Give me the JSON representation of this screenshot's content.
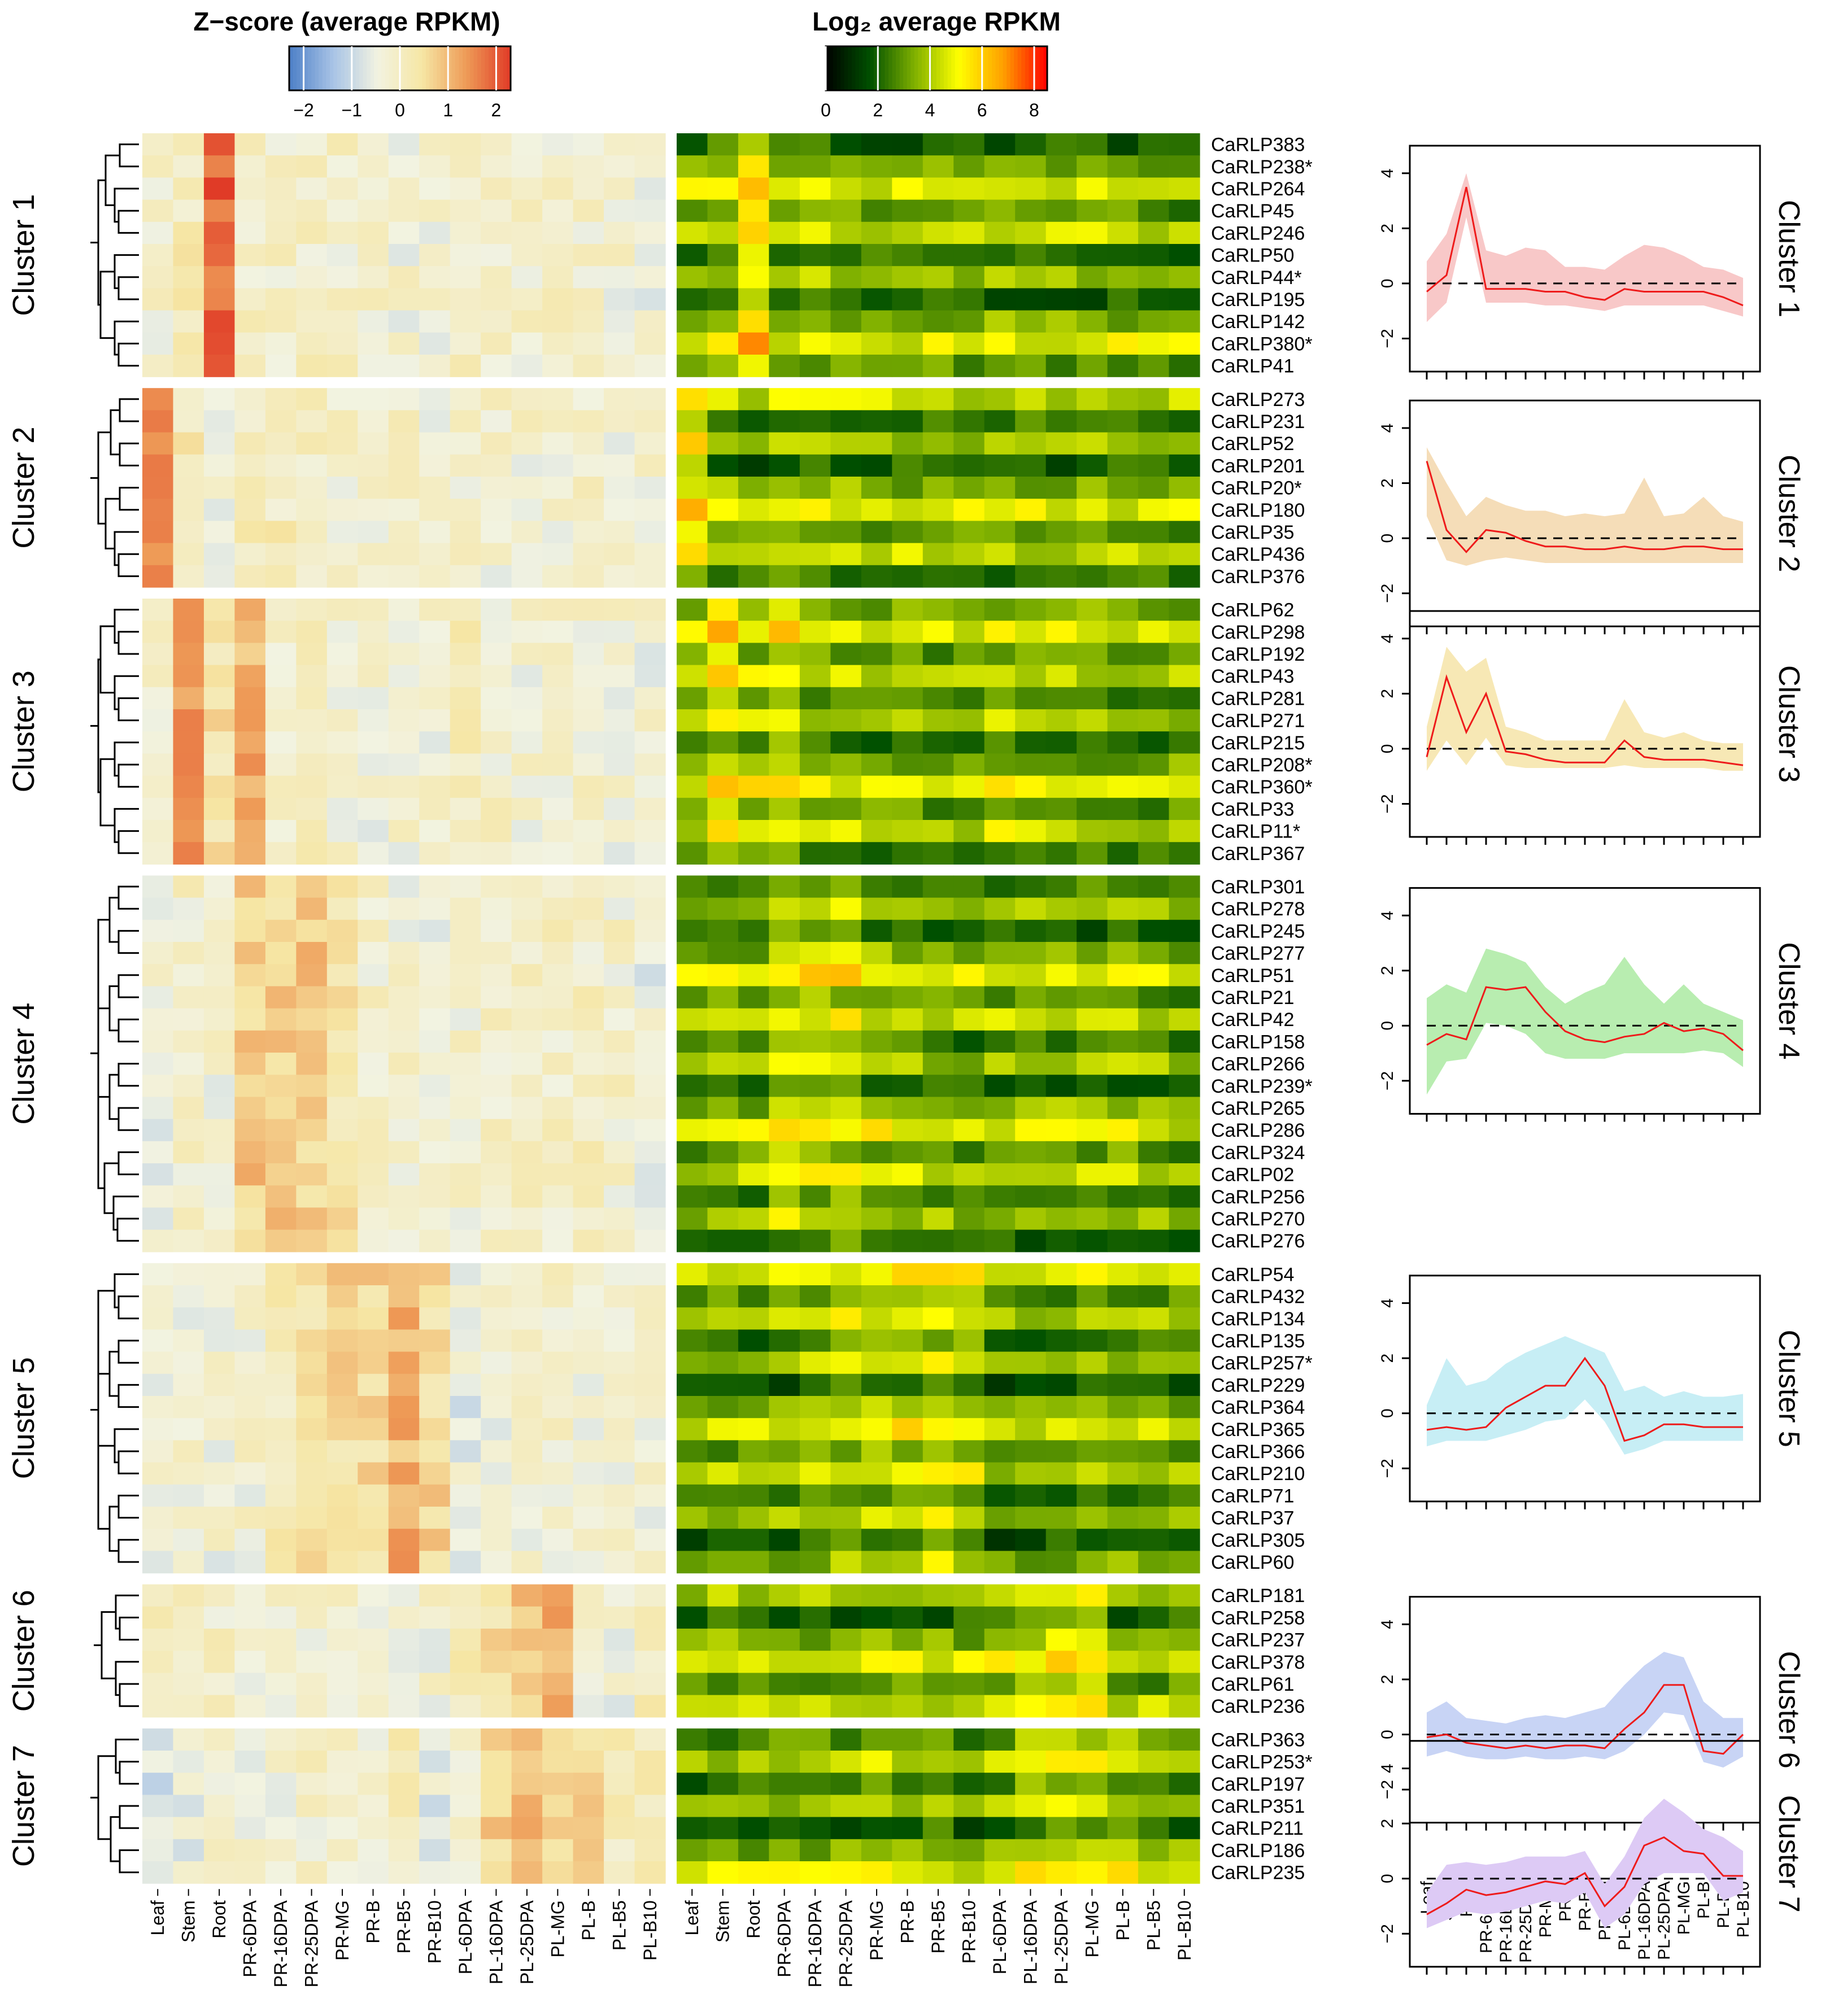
{
  "chart_data": {
    "type": "heatmap",
    "legend_zscore": {
      "title": "Z−score (average RPKM)",
      "ticks": [
        "−2",
        "−1",
        "0",
        "1",
        "2"
      ],
      "range": [
        -2.3,
        2.3
      ]
    },
    "legend_log2": {
      "title": "Log₂ average RPKM",
      "ticks": [
        "0",
        "2",
        "4",
        "6",
        "8"
      ],
      "range": [
        0,
        8.5
      ]
    },
    "heatmap_colors": {
      "zscore": [
        "#4c7fc7",
        "#a9c4e6",
        "#f2f3e1",
        "#f6e6a4",
        "#ee9b57",
        "#e03b27"
      ],
      "log2": [
        "#000000",
        "#005000",
        "#7fb000",
        "#ffff00",
        "#ffa000",
        "#ff0000"
      ]
    },
    "line_colors": {
      "mean": "#ee1b1b",
      "zero_line": "#000000"
    },
    "x_tick_labels": [
      "Leaf",
      "Stem",
      "Root",
      "PR-6DPA",
      "PR-16DPA",
      "PR-25DPA",
      "PR-MG",
      "PR-B",
      "PR-B5",
      "PR-B10",
      "PL-6DPA",
      "PL-16DPA",
      "PL-25DPA",
      "PL-MG",
      "PL-B",
      "PL-B5",
      "PL-B10"
    ],
    "profile_y_ticks": [
      "4",
      "2",
      "0",
      "−2"
    ],
    "profile_ylim": [
      -3.2,
      5
    ],
    "clusters": [
      {
        "name": "Cluster 1",
        "band_color": "#f8c8c8",
        "genes": [
          "CaRLP383",
          "CaRLP238*",
          "CaRLP264",
          "CaRLP45",
          "CaRLP246",
          "CaRLP50",
          "CaRLP44*",
          "CaRLP195",
          "CaRLP142",
          "CaRLP380*",
          "CaRLP41"
        ],
        "mean": [
          -0.3,
          0.3,
          3.5,
          -0.2,
          -0.2,
          -0.2,
          -0.3,
          -0.3,
          -0.5,
          -0.6,
          -0.2,
          -0.3,
          -0.3,
          -0.3,
          -0.3,
          -0.5,
          -0.8
        ],
        "lower": [
          -1.4,
          -0.7,
          2.4,
          -0.7,
          -0.7,
          -0.7,
          -0.8,
          -0.8,
          -0.9,
          -1.0,
          -0.8,
          -0.8,
          -0.8,
          -0.8,
          -0.8,
          -1.0,
          -1.2
        ],
        "upper": [
          0.8,
          1.8,
          4.0,
          1.2,
          1.0,
          1.3,
          1.2,
          0.6,
          0.6,
          0.5,
          1.0,
          1.4,
          1.3,
          1.0,
          0.6,
          0.5,
          0.2
        ]
      },
      {
        "name": "Cluster 2",
        "band_color": "#f5ddb8",
        "genes": [
          "CaRLP273",
          "CaRLP231",
          "CaRLP52",
          "CaRLP201",
          "CaRLP20*",
          "CaRLP180",
          "CaRLP35",
          "CaRLP436",
          "CaRLP376"
        ],
        "mean": [
          2.8,
          0.3,
          -0.5,
          0.3,
          0.2,
          -0.1,
          -0.3,
          -0.3,
          -0.4,
          -0.4,
          -0.3,
          -0.4,
          -0.4,
          -0.3,
          -0.3,
          -0.4,
          -0.4
        ],
        "lower": [
          0.8,
          -0.8,
          -1.0,
          -0.8,
          -0.7,
          -0.8,
          -0.9,
          -0.9,
          -0.9,
          -0.9,
          -0.9,
          -0.9,
          -0.9,
          -0.9,
          -0.9,
          -0.9,
          -0.9
        ],
        "upper": [
          3.3,
          2.0,
          0.8,
          1.5,
          1.2,
          1.0,
          1.0,
          0.8,
          0.9,
          0.8,
          0.9,
          2.2,
          0.8,
          0.9,
          1.5,
          0.8,
          0.6
        ]
      },
      {
        "name": "Cluster 3",
        "band_color": "#f7e8b5",
        "genes": [
          "CaRLP62",
          "CaRLP298",
          "CaRLP192",
          "CaRLP43",
          "CaRLP281",
          "CaRLP271",
          "CaRLP215",
          "CaRLP208*",
          "CaRLP360*",
          "CaRLP33",
          "CaRLP11*",
          "CaRLP367"
        ],
        "mean": [
          -0.3,
          2.6,
          0.6,
          2.0,
          -0.1,
          -0.2,
          -0.4,
          -0.5,
          -0.5,
          -0.5,
          0.3,
          -0.3,
          -0.4,
          -0.4,
          -0.4,
          -0.5,
          -0.6
        ],
        "lower": [
          -0.8,
          0.3,
          -0.6,
          0.4,
          -0.6,
          -0.7,
          -0.7,
          -0.7,
          -0.7,
          -0.7,
          -0.6,
          -0.7,
          -0.7,
          -0.7,
          -0.7,
          -0.8,
          -0.8
        ],
        "upper": [
          0.8,
          3.7,
          2.8,
          3.3,
          0.8,
          0.6,
          0.3,
          0.3,
          0.3,
          0.3,
          1.8,
          0.6,
          0.4,
          0.6,
          0.3,
          0.2,
          0.2
        ]
      },
      {
        "name": "Cluster 4",
        "band_color": "#b8edb0",
        "genes": [
          "CaRLP301",
          "CaRLP278",
          "CaRLP245",
          "CaRLP277",
          "CaRLP51",
          "CaRLP21",
          "CaRLP42",
          "CaRLP158",
          "CaRLP266",
          "CaRLP239*",
          "CaRLP265",
          "CaRLP286",
          "CaRLP324",
          "CaRLP02",
          "CaRLP256",
          "CaRLP270",
          "CaRLP276"
        ],
        "mean": [
          -0.7,
          -0.3,
          -0.5,
          1.4,
          1.3,
          1.4,
          0.5,
          -0.2,
          -0.5,
          -0.6,
          -0.4,
          -0.3,
          0.1,
          -0.2,
          -0.1,
          -0.3,
          -0.9
        ],
        "lower": [
          -2.5,
          -1.3,
          -1.2,
          0.1,
          0.0,
          -0.3,
          -1.0,
          -1.2,
          -1.2,
          -1.2,
          -1.0,
          -1.0,
          -1.0,
          -1.0,
          -0.9,
          -1.0,
          -1.5
        ],
        "upper": [
          1.0,
          1.5,
          1.2,
          2.8,
          2.6,
          2.3,
          1.4,
          0.8,
          1.2,
          1.5,
          2.5,
          1.5,
          0.8,
          1.5,
          0.8,
          0.5,
          0.2
        ]
      },
      {
        "name": "Cluster 5",
        "band_color": "#c7eef5",
        "genes": [
          "CaRLP54",
          "CaRLP432",
          "CaRLP134",
          "CaRLP135",
          "CaRLP257*",
          "CaRLP229",
          "CaRLP364",
          "CaRLP365",
          "CaRLP366",
          "CaRLP210",
          "CaRLP71",
          "CaRLP37",
          "CaRLP305",
          "CaRLP60"
        ],
        "mean": [
          -0.6,
          -0.5,
          -0.6,
          -0.5,
          0.2,
          0.6,
          1.0,
          1.0,
          2.0,
          1.0,
          -1.0,
          -0.8,
          -0.4,
          -0.4,
          -0.5,
          -0.5,
          -0.5
        ],
        "lower": [
          -1.2,
          -1.0,
          -1.0,
          -1.0,
          -0.8,
          -0.6,
          -0.3,
          -0.2,
          0.5,
          -0.3,
          -1.5,
          -1.3,
          -1.0,
          -1.0,
          -1.0,
          -1.0,
          -1.0
        ],
        "upper": [
          0.3,
          2.0,
          1.0,
          1.2,
          1.8,
          2.2,
          2.5,
          2.8,
          2.5,
          2.2,
          0.8,
          1.0,
          0.6,
          0.8,
          0.6,
          0.6,
          0.7
        ]
      },
      {
        "name": "Cluster 6",
        "band_color": "#c8d4f5",
        "genes": [
          "CaRLP181",
          "CaRLP258",
          "CaRLP237",
          "CaRLP378",
          "CaRLP61",
          "CaRLP236"
        ],
        "mean": [
          -0.1,
          0.0,
          -0.3,
          -0.4,
          -0.5,
          -0.4,
          -0.5,
          -0.4,
          -0.4,
          -0.5,
          0.2,
          0.8,
          1.8,
          1.8,
          -0.6,
          -0.7,
          0.0
        ],
        "lower": [
          -0.8,
          -0.6,
          -0.8,
          -0.9,
          -0.9,
          -0.8,
          -0.9,
          -0.9,
          -0.8,
          -0.9,
          -0.6,
          0.0,
          0.8,
          0.7,
          -1.0,
          -1.2,
          -0.8
        ],
        "upper": [
          0.8,
          1.2,
          0.6,
          0.5,
          0.4,
          0.6,
          0.7,
          0.6,
          0.8,
          1.0,
          1.8,
          2.5,
          3.0,
          2.8,
          1.2,
          0.6,
          0.6
        ]
      },
      {
        "name": "Cluster 7",
        "band_color": "#ddcaf5",
        "genes": [
          "CaRLP363",
          "CaRLP253*",
          "CaRLP197",
          "CaRLP351",
          "CaRLP211",
          "CaRLP186",
          "CaRLP235"
        ],
        "mean": [
          -1.3,
          -0.9,
          -0.4,
          -0.6,
          -0.5,
          -0.3,
          -0.1,
          -0.2,
          0.2,
          -1.0,
          -0.3,
          1.2,
          1.5,
          1.0,
          0.9,
          0.1,
          0.1
        ],
        "lower": [
          -1.8,
          -1.5,
          -1.2,
          -1.3,
          -1.2,
          -1.0,
          -0.8,
          -0.9,
          -0.5,
          -1.8,
          -1.3,
          -0.2,
          0.2,
          0.2,
          0.2,
          -0.8,
          -0.5
        ],
        "upper": [
          -0.5,
          0.5,
          0.6,
          0.5,
          0.6,
          0.8,
          0.8,
          0.8,
          1.0,
          -0.2,
          0.8,
          2.2,
          2.9,
          2.4,
          1.8,
          1.5,
          1.0
        ]
      }
    ]
  }
}
